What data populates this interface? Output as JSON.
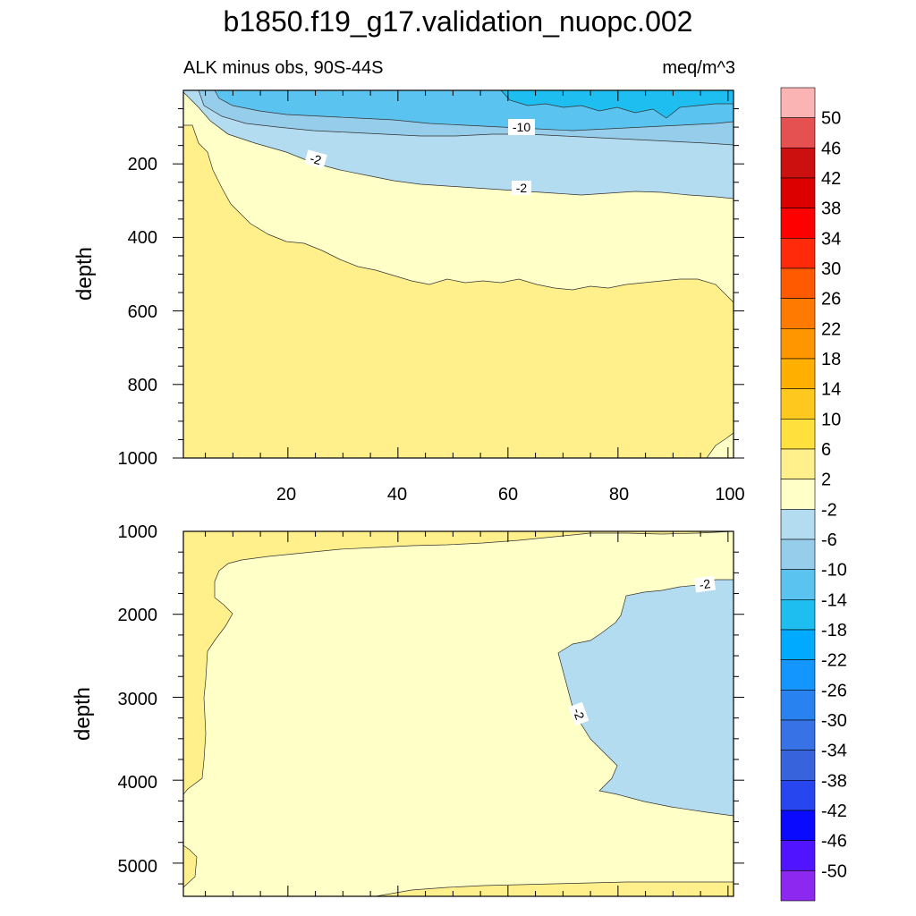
{
  "title": "b1850.f19_g17.validation_nuopc.002",
  "chart_data": [
    {
      "type": "heatmap",
      "panel": "upper",
      "left_string": "ALK minus obs, 90S-44S",
      "right_string": "meq/m^3",
      "ylabel": "depth",
      "xlabel": "",
      "xlim": [
        1,
        101
      ],
      "ylim": [
        0,
        1000
      ],
      "y_inverted": true,
      "xticks": [
        "20",
        "40",
        "60",
        "80",
        "100"
      ],
      "yticks": [
        "200",
        "400",
        "600",
        "800",
        "1000"
      ],
      "contour_labels": [
        "-10",
        "-2",
        "-2"
      ]
    },
    {
      "type": "heatmap",
      "panel": "lower",
      "ylabel": "depth",
      "xlabel": "",
      "xlim": [
        1,
        101
      ],
      "ylim": [
        1000,
        5400
      ],
      "y_inverted": true,
      "yticks": [
        "1000",
        "2000",
        "3000",
        "4000",
        "5000"
      ],
      "contour_labels": [
        "-2",
        "-2"
      ]
    }
  ],
  "colorbar": {
    "labels": [
      "50",
      "46",
      "42",
      "38",
      "34",
      "30",
      "26",
      "22",
      "18",
      "14",
      "10",
      "6",
      "2",
      "-2",
      "-6",
      "-10",
      "-14",
      "-18",
      "-22",
      "-26",
      "-30",
      "-34",
      "-38",
      "-42",
      "-46",
      "-50"
    ],
    "colors": [
      "#fbb4b4",
      "#e55050",
      "#cc1010",
      "#dd0000",
      "#ff0000",
      "#ff2a0a",
      "#ff5a00",
      "#ff7a00",
      "#ff9600",
      "#ffaf00",
      "#ffc81e",
      "#ffe03c",
      "#fff08c",
      "#ffffc8",
      "#b4dcf0",
      "#96cdeb",
      "#5ac3f0",
      "#1ebef0",
      "#00aaff",
      "#1496ff",
      "#2882f0",
      "#3773e6",
      "#3764dc",
      "#2846f0",
      "#0a0aff",
      "#5014ff",
      "#8c28f0"
    ]
  },
  "fill_colors": {
    "light_yellow": "#ffffc8",
    "yellow": "#fff08c",
    "light_blue": "#b4dcf0",
    "mid_blue": "#5ac3f0",
    "cyan": "#1ebef0"
  }
}
